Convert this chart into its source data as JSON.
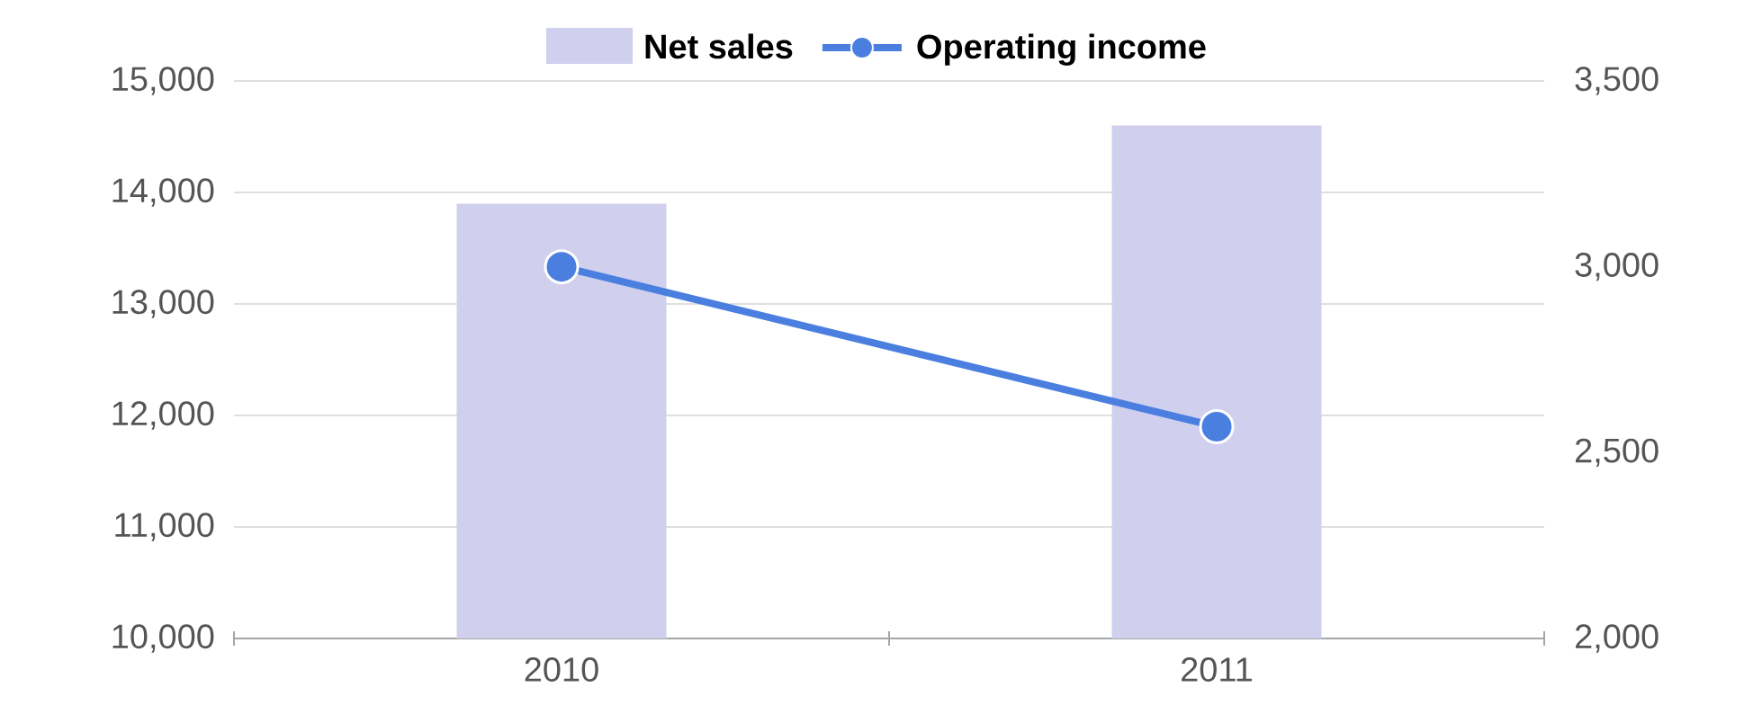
{
  "chart_data": {
    "type": "bar",
    "categories": [
      "2010",
      "2011"
    ],
    "series": [
      {
        "name": "Net sales",
        "color": "#d0cfee",
        "values": [
          13900,
          14600
        ]
      },
      {
        "name": "Operating income",
        "type": "line",
        "axis": "y2",
        "color": "#4a7fe0",
        "marker": "circle",
        "values": [
          3000,
          2570
        ]
      }
    ],
    "ylim": [
      10000,
      15000
    ],
    "yticks": [
      {
        "value": 10000,
        "label": "10,000"
      },
      {
        "value": 11000,
        "label": "11,000"
      },
      {
        "value": 12000,
        "label": "12,000"
      },
      {
        "value": 13000,
        "label": "13,000"
      },
      {
        "value": 14000,
        "label": "14,000"
      },
      {
        "value": 15000,
        "label": "15,000"
      }
    ],
    "y2lim": [
      2000,
      3500
    ],
    "y2ticks": [
      {
        "value": 2000,
        "label": "2,000"
      },
      {
        "value": 2500,
        "label": "2,500"
      },
      {
        "value": 3000,
        "label": "3,000"
      },
      {
        "value": 3500,
        "label": "3,500"
      }
    ],
    "grid": "y",
    "legend": "top"
  }
}
